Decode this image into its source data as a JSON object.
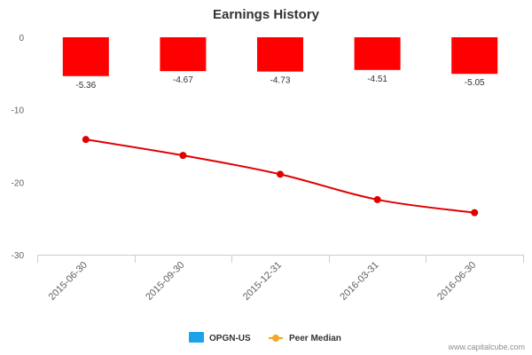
{
  "chart_data": {
    "type": "bar",
    "title": "Earnings History",
    "categories": [
      "2015-06-30",
      "2015-09-30",
      "2015-12-31",
      "2016-03-31",
      "2016-06-30"
    ],
    "ylim": [
      -30,
      0
    ],
    "yticks": [
      0,
      -10,
      -20,
      -30
    ],
    "grid": false,
    "legend_position": "bottom",
    "series": [
      {
        "name": "OPGN-US",
        "type": "bar",
        "values": [
          -5.36,
          -4.67,
          -4.73,
          -4.51,
          -5.05
        ],
        "data_labels": [
          "-5.36",
          "-4.67",
          "-4.73",
          "-4.51",
          "-5.05"
        ]
      },
      {
        "name": "Peer Median",
        "type": "line",
        "values": [
          -14.1,
          -16.3,
          -18.9,
          -22.4,
          -24.2
        ]
      }
    ]
  },
  "colors": {
    "bar": "#ff0000",
    "line": "#e00000",
    "legend_bar": "#1aa3e8",
    "legend_line": "#f5a623",
    "axis": "#c0d0e0",
    "text": "#606060"
  },
  "legend": {
    "items": [
      "OPGN-US",
      "Peer Median"
    ]
  },
  "credit": "www.capitalcube.com"
}
